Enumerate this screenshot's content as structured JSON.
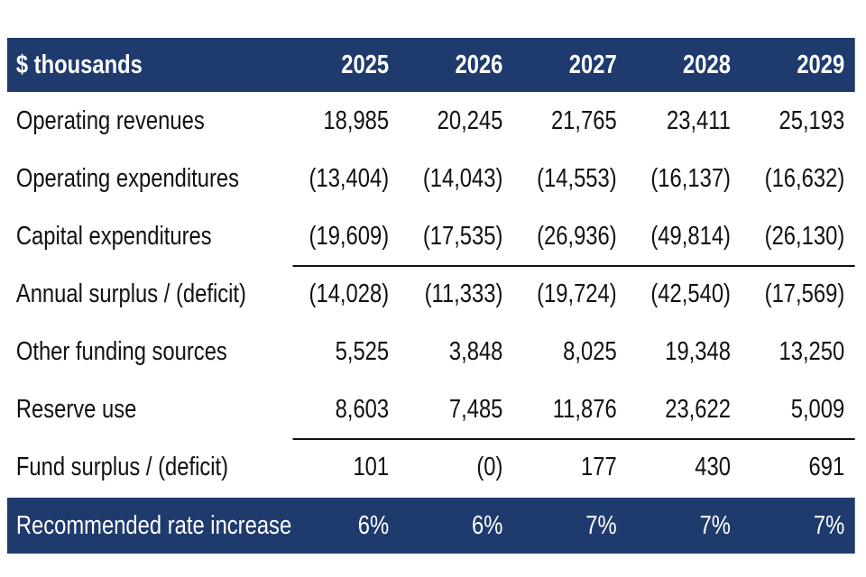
{
  "table": {
    "header": {
      "label": "$ thousands",
      "years": [
        "2025",
        "2026",
        "2027",
        "2028",
        "2029"
      ]
    },
    "rows": [
      {
        "label": "Operating revenues",
        "values": [
          "18,985",
          "20,245",
          "21,765",
          "23,411",
          "25,193"
        ]
      },
      {
        "label": "Operating expenditures",
        "values": [
          "(13,404)",
          "(14,043)",
          "(14,553)",
          "(16,137)",
          "(16,632)"
        ]
      },
      {
        "label": "Capital expenditures",
        "values": [
          "(19,609)",
          "(17,535)",
          "(26,936)",
          "(49,814)",
          "(26,130)"
        ]
      },
      {
        "label": "Annual surplus / (deficit)",
        "values": [
          "(14,028)",
          "(11,333)",
          "(19,724)",
          "(42,540)",
          "(17,569)"
        ]
      },
      {
        "label": "Other funding sources",
        "values": [
          "5,525",
          "3,848",
          "8,025",
          "19,348",
          "13,250"
        ]
      },
      {
        "label": "Reserve use",
        "values": [
          "8,603",
          "7,485",
          "11,876",
          "23,622",
          "5,009"
        ]
      },
      {
        "label": "Fund surplus / (deficit)",
        "values": [
          "101",
          "(0)",
          "177",
          "430",
          "691"
        ]
      }
    ],
    "footer": {
      "label": "Recommended rate increase",
      "values": [
        "6%",
        "6%",
        "7%",
        "7%",
        "7%"
      ]
    },
    "colors": {
      "header_bg": "#1f3a6d",
      "header_text": "#ffffff",
      "body_text": "#111111"
    }
  }
}
